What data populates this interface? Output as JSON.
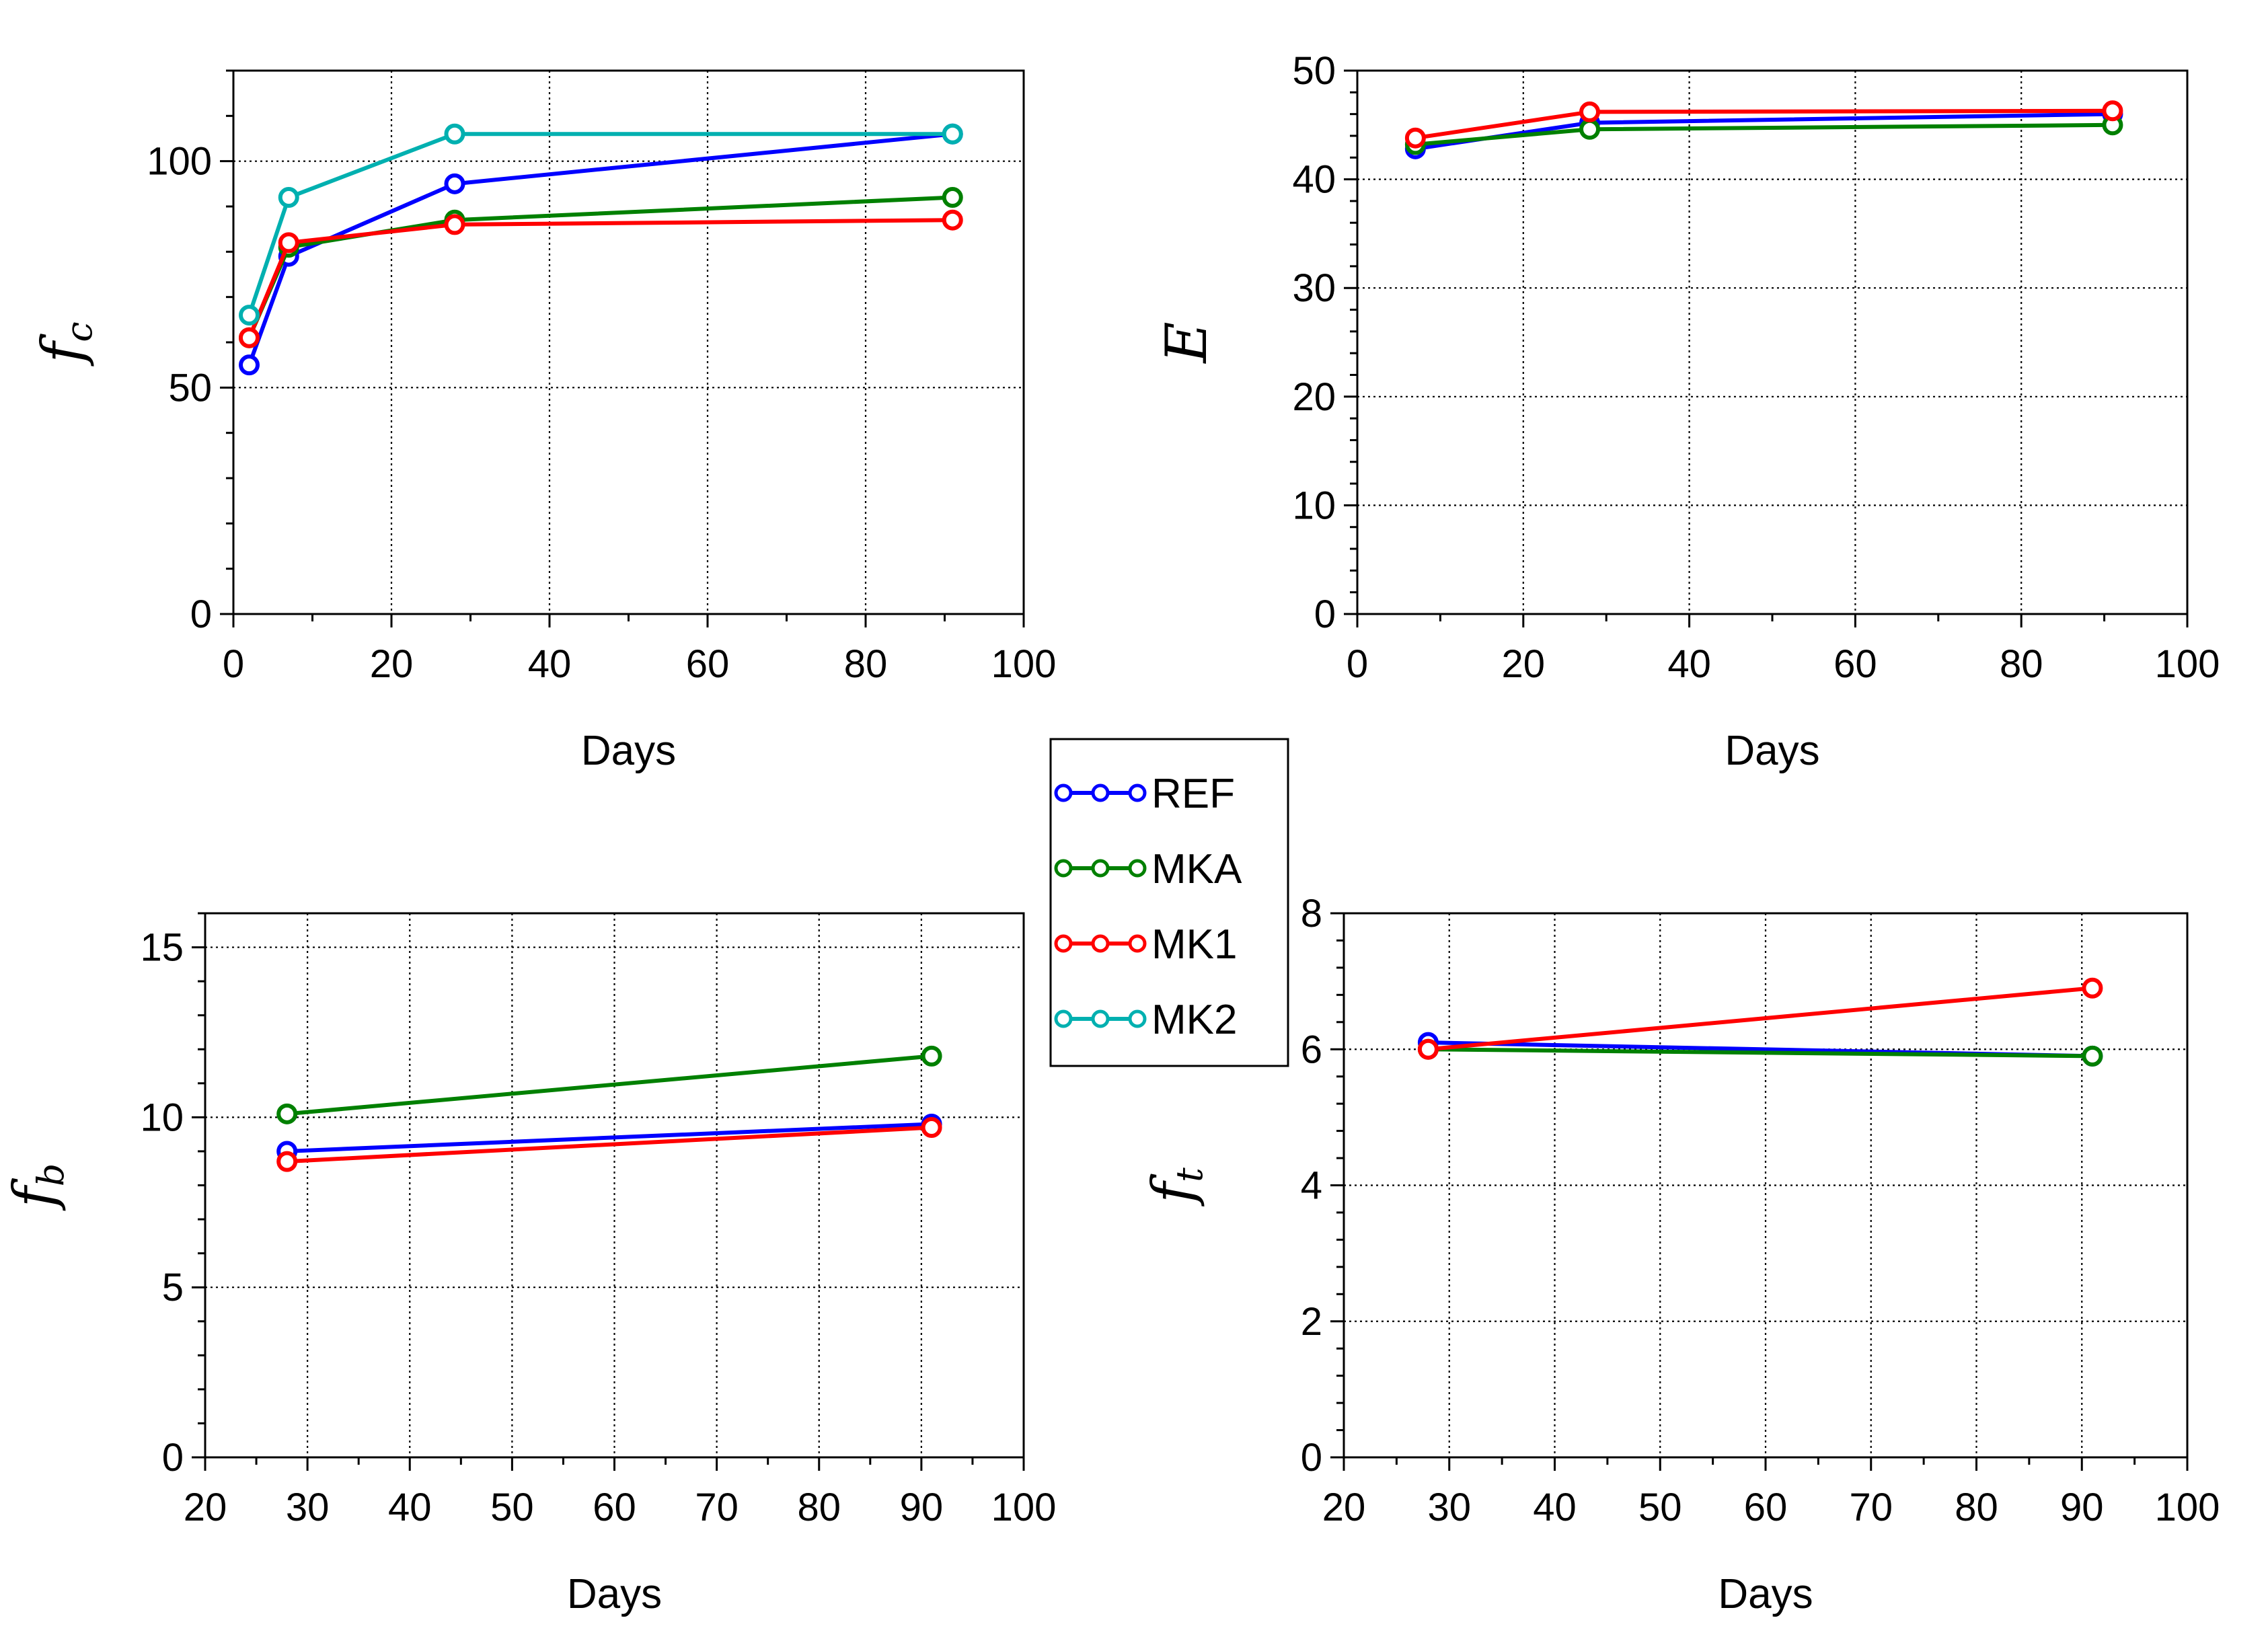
{
  "colors": {
    "REF": "#0000ff",
    "MKA": "#008000",
    "MK1": "#ff0000",
    "MK2": "#00b0b0"
  },
  "legend": {
    "entries": [
      "REF",
      "MKA",
      "MK1",
      "MK2"
    ]
  },
  "chart_data": [
    {
      "type": "line",
      "panel": "top-left",
      "ylabel_main": "f",
      "ylabel_sub": "c",
      "xlabel": "Days",
      "xlim": [
        0,
        100
      ],
      "ylim": [
        0,
        120
      ],
      "xticks": [
        0,
        20,
        40,
        60,
        80,
        100
      ],
      "yticks": [
        0,
        50,
        100
      ],
      "grid": true,
      "series": [
        {
          "name": "REF",
          "x": [
            2,
            7,
            28,
            91
          ],
          "y": [
            55,
            79,
            95,
            106
          ]
        },
        {
          "name": "MKA",
          "x": [
            2,
            7,
            28,
            91
          ],
          "y": [
            61,
            81,
            87,
            92
          ]
        },
        {
          "name": "MK1",
          "x": [
            2,
            7,
            28,
            91
          ],
          "y": [
            61,
            82,
            86,
            87
          ]
        },
        {
          "name": "MK2",
          "x": [
            2,
            7,
            28,
            91
          ],
          "y": [
            66,
            92,
            106,
            106
          ]
        }
      ]
    },
    {
      "type": "line",
      "panel": "top-right",
      "ylabel_main": "E",
      "ylabel_sub": "",
      "xlabel": "Days",
      "xlim": [
        0,
        100
      ],
      "ylim": [
        0,
        50
      ],
      "xticks": [
        0,
        20,
        40,
        60,
        80,
        100
      ],
      "yticks": [
        0,
        10,
        20,
        30,
        40,
        50
      ],
      "grid": true,
      "series": [
        {
          "name": "REF",
          "x": [
            7,
            28,
            91
          ],
          "y": [
            42.8,
            45.2,
            46.0
          ]
        },
        {
          "name": "MKA",
          "x": [
            7,
            28,
            91
          ],
          "y": [
            43.2,
            44.6,
            45.0
          ]
        },
        {
          "name": "MK1",
          "x": [
            7,
            28,
            91
          ],
          "y": [
            43.8,
            46.2,
            46.3
          ]
        }
      ]
    },
    {
      "type": "line",
      "panel": "bottom-left",
      "ylabel_main": "f",
      "ylabel_sub": "b",
      "xlabel": "Days",
      "xlim": [
        20,
        100
      ],
      "ylim": [
        0,
        16
      ],
      "xticks": [
        20,
        30,
        40,
        50,
        60,
        70,
        80,
        90,
        100
      ],
      "yticks": [
        0,
        5,
        10,
        15
      ],
      "grid": true,
      "series": [
        {
          "name": "REF",
          "x": [
            28,
            91
          ],
          "y": [
            9.0,
            9.8
          ]
        },
        {
          "name": "MKA",
          "x": [
            28,
            91
          ],
          "y": [
            10.1,
            11.8
          ]
        },
        {
          "name": "MK1",
          "x": [
            28,
            91
          ],
          "y": [
            8.7,
            9.7
          ]
        }
      ]
    },
    {
      "type": "line",
      "panel": "bottom-right",
      "ylabel_main": "f",
      "ylabel_sub": "t",
      "xlabel": "Days",
      "xlim": [
        20,
        100
      ],
      "ylim": [
        0,
        8
      ],
      "xticks": [
        20,
        30,
        40,
        50,
        60,
        70,
        80,
        90,
        100
      ],
      "yticks": [
        0,
        2,
        4,
        6,
        8
      ],
      "grid": true,
      "series": [
        {
          "name": "REF",
          "x": [
            28,
            91
          ],
          "y": [
            6.1,
            5.9
          ]
        },
        {
          "name": "MKA",
          "x": [
            28,
            91
          ],
          "y": [
            6.0,
            5.9
          ]
        },
        {
          "name": "MK1",
          "x": [
            28,
            91
          ],
          "y": [
            6.0,
            6.9
          ]
        }
      ]
    }
  ]
}
